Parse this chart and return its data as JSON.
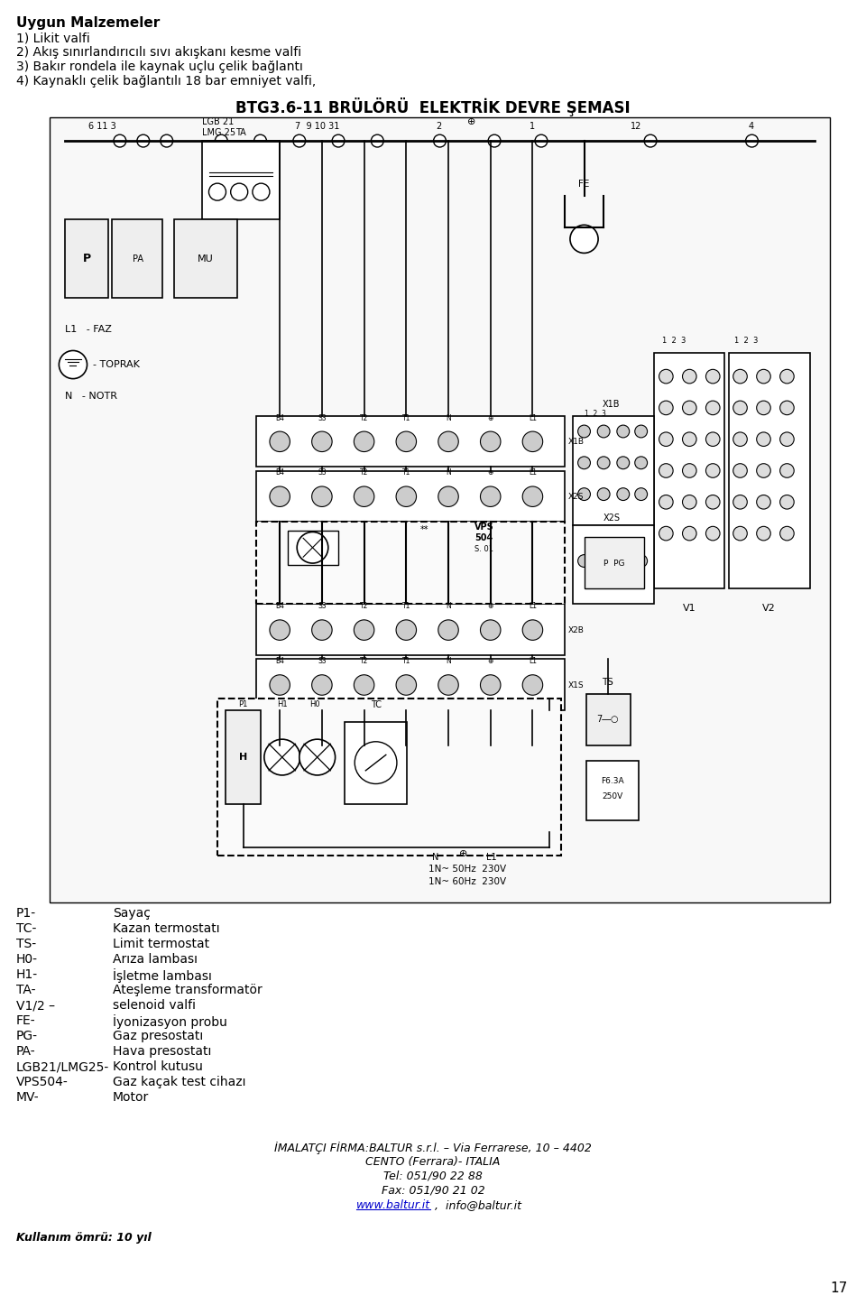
{
  "title_main": "BTG3.6-11 BRÜLÖRÜ  ELEKTRİK DEVRE ŞEMASI",
  "header_bold": "Uygun Malzemeler",
  "header_lines": [
    "1) Likit valfi",
    "2) Akış sınırlandırıcılı sıvı akışkanı kesme valfi",
    "3) Bakır rondela ile kaynak uçlu çelik bağlantı",
    "4) Kaynaklı çelik bağlantılı 18 bar emniyet valfi,"
  ],
  "legend_items": [
    [
      "P1-",
      "Sayaç"
    ],
    [
      "TC-",
      "Kazan termostatı"
    ],
    [
      "TS-",
      "Limit termostat"
    ],
    [
      "H0-",
      "Arıza lambası"
    ],
    [
      "H1-",
      "İşletme lambası"
    ],
    [
      "TA-",
      "Ateşleme transformatör"
    ],
    [
      "V1/2 –",
      "selenoid valfi"
    ],
    [
      "FE-",
      "İyonizasyon probu"
    ],
    [
      "PG-",
      "Gaz presostatı"
    ],
    [
      "PA-",
      "Hava presostatı"
    ],
    [
      "LGB21/LMG25-",
      "Kontrol kutusu"
    ],
    [
      "VPS504-",
      "Gaz kaçak test cihazı"
    ],
    [
      "MV-",
      "Motor"
    ]
  ],
  "footer_line1": "İMALATÇI FİRMA:BALTUR s.r.l. – Via Ferrarese, 10 – 4402",
  "footer_line2": "CENTO (Ferrara)- ITALIA",
  "footer_line3": "Tel: 051/90 22 88",
  "footer_line4": "Fax: 051/90 21 02",
  "footer_line5_url": "www.baltur.it",
  "footer_line5_rest": " ,  info@baltur.it",
  "footer_bottom": "Kullanım ömrü: 10 yıl",
  "page_number": "17",
  "bg_color": "#ffffff",
  "text_color": "#000000"
}
